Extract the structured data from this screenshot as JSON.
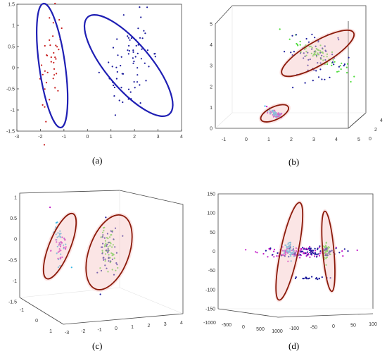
{
  "colors": {
    "blue_ellipse": "#1f1fb4",
    "brown_ellipse": "#8b1a0a",
    "blue": "#1a1a9c",
    "magenta": "#c316c8",
    "green": "#4ddc3a",
    "cyan": "#37b8e8",
    "red": "#c81e1e",
    "glow": "#f6c6c6"
  },
  "chart_data": [
    {
      "panel": "a",
      "label": "(a)",
      "type": "scatter",
      "xlim": [
        -3,
        4
      ],
      "ylim": [
        -1.5,
        1.5
      ],
      "x_ticks": [
        "-3",
        "-2",
        "-1",
        "0",
        "1",
        "2",
        "3",
        "4"
      ],
      "y_ticks": [
        "-1.5",
        "-1",
        "-0.5",
        "0",
        "0.5",
        "1",
        "1.5"
      ],
      "clusters": [
        {
          "cx": -1.5,
          "cy": 0.05,
          "rx": 0.45,
          "ry": 1.45,
          "rot": -8,
          "color": "red",
          "n": 40
        },
        {
          "cx": 1.75,
          "cy": 0.05,
          "rx": 0.9,
          "ry": 1.25,
          "rot": -40,
          "color": "blue",
          "n": 70
        }
      ],
      "ellipses": [
        {
          "cx": -1.5,
          "cy": 0.05,
          "rx": 0.55,
          "ry": 1.48,
          "rot": -8,
          "color": "blue_ellipse"
        },
        {
          "cx": 1.75,
          "cy": 0.05,
          "rx": 0.95,
          "ry": 1.5,
          "rot": -40,
          "color": "blue_ellipse"
        }
      ]
    },
    {
      "panel": "b",
      "label": "(b)",
      "type": "scatter3d",
      "z_ticks": [
        "0",
        "1",
        "2",
        "3",
        "4",
        "5"
      ],
      "x_ticks": [
        "-1",
        "0",
        "1",
        "2",
        "3",
        "4",
        "5"
      ],
      "y_ticks": [
        "0",
        "2",
        "4"
      ],
      "clusters": [
        {
          "cx": 0.7,
          "cy": 0.7,
          "rx": 0.45,
          "ry": 0.2,
          "rot": -25,
          "color": "magenta",
          "n": 40
        },
        {
          "cx": 0.7,
          "cy": 0.7,
          "rx": 0.35,
          "ry": 0.15,
          "rot": -25,
          "color": "cyan",
          "n": 30
        },
        {
          "cx": 3.0,
          "cy": 3.5,
          "rx": 1.6,
          "ry": 0.35,
          "rot": -28,
          "color": "green",
          "n": 70
        },
        {
          "cx": 3.0,
          "cy": 3.3,
          "rx": 1.8,
          "ry": 1.0,
          "rot": -15,
          "color": "blue",
          "n": 60
        }
      ],
      "ellipses": [
        {
          "cx": 0.7,
          "cy": 0.7,
          "rx": 0.8,
          "ry": 0.3,
          "rot": -25,
          "color": "brown_ellipse"
        },
        {
          "cx": 3.0,
          "cy": 3.5,
          "rx": 2.2,
          "ry": 0.55,
          "rot": -30,
          "color": "brown_ellipse"
        }
      ]
    },
    {
      "panel": "c",
      "label": "(c)",
      "type": "scatter3d",
      "z_ticks": [
        "-1.5",
        "-1",
        "-0.5",
        "0",
        "0.5",
        "1"
      ],
      "x_ticks": [
        "-3",
        "-2",
        "-1",
        "0",
        "1",
        "2",
        "3",
        "4"
      ],
      "y_ticks": [
        "-1",
        "0",
        "1"
      ],
      "clusters": [
        {
          "cx": -1.8,
          "cy": -0.1,
          "rx": 0.25,
          "ry": 0.55,
          "rot": 20,
          "color": "cyan",
          "n": 30
        },
        {
          "cx": -1.8,
          "cy": -0.1,
          "rx": 0.4,
          "ry": 0.6,
          "rot": 20,
          "color": "magenta",
          "n": 30
        },
        {
          "cx": 0.3,
          "cy": -0.3,
          "rx": 0.35,
          "ry": 0.6,
          "rot": 15,
          "color": "green",
          "n": 50
        },
        {
          "cx": 0.3,
          "cy": -0.3,
          "rx": 0.55,
          "ry": 0.7,
          "rot": 15,
          "color": "blue",
          "n": 40
        }
      ],
      "ellipses": [
        {
          "cx": -1.8,
          "cy": -0.15,
          "rx": 0.45,
          "ry": 0.85,
          "rot": 22,
          "color": "brown_ellipse"
        },
        {
          "cx": 0.3,
          "cy": -0.3,
          "rx": 0.85,
          "ry": 0.95,
          "rot": 20,
          "color": "brown_ellipse"
        }
      ]
    },
    {
      "panel": "d",
      "label": "(d)",
      "type": "scatter3d",
      "z_ticks": [
        "-150",
        "-100",
        "-50",
        "0",
        "50",
        "100",
        "150"
      ],
      "x_ticks": [
        "-1000",
        "-500",
        "0",
        "500",
        "1000"
      ],
      "y_ticks": [
        "-100",
        "-50",
        "0",
        "50",
        "100"
      ],
      "clusters": [
        {
          "cx": -20,
          "cy": -2,
          "rx": 60,
          "ry": 12,
          "rot": 0,
          "color": "magenta",
          "n": 120
        },
        {
          "cx": -35,
          "cy": 0,
          "rx": 8,
          "ry": 28,
          "rot": 0,
          "color": "cyan",
          "n": 50
        },
        {
          "cx": 25,
          "cy": 0,
          "rx": 6,
          "ry": 25,
          "rot": 0,
          "color": "green",
          "n": 50
        },
        {
          "cx": 0,
          "cy": 0,
          "rx": 50,
          "ry": 15,
          "rot": 0,
          "color": "blue",
          "n": 70
        },
        {
          "cx": -10,
          "cy": -70,
          "rx": 35,
          "ry": 3,
          "rot": 0,
          "color": "blue",
          "n": 20
        }
      ],
      "ellipses": [
        {
          "cx": -35,
          "cy": 0,
          "rx": 14,
          "ry": 130,
          "rot": 12,
          "color": "brown_ellipse"
        },
        {
          "cx": 28,
          "cy": 0,
          "rx": 9,
          "ry": 105,
          "rot": -5,
          "color": "brown_ellipse"
        }
      ]
    }
  ]
}
